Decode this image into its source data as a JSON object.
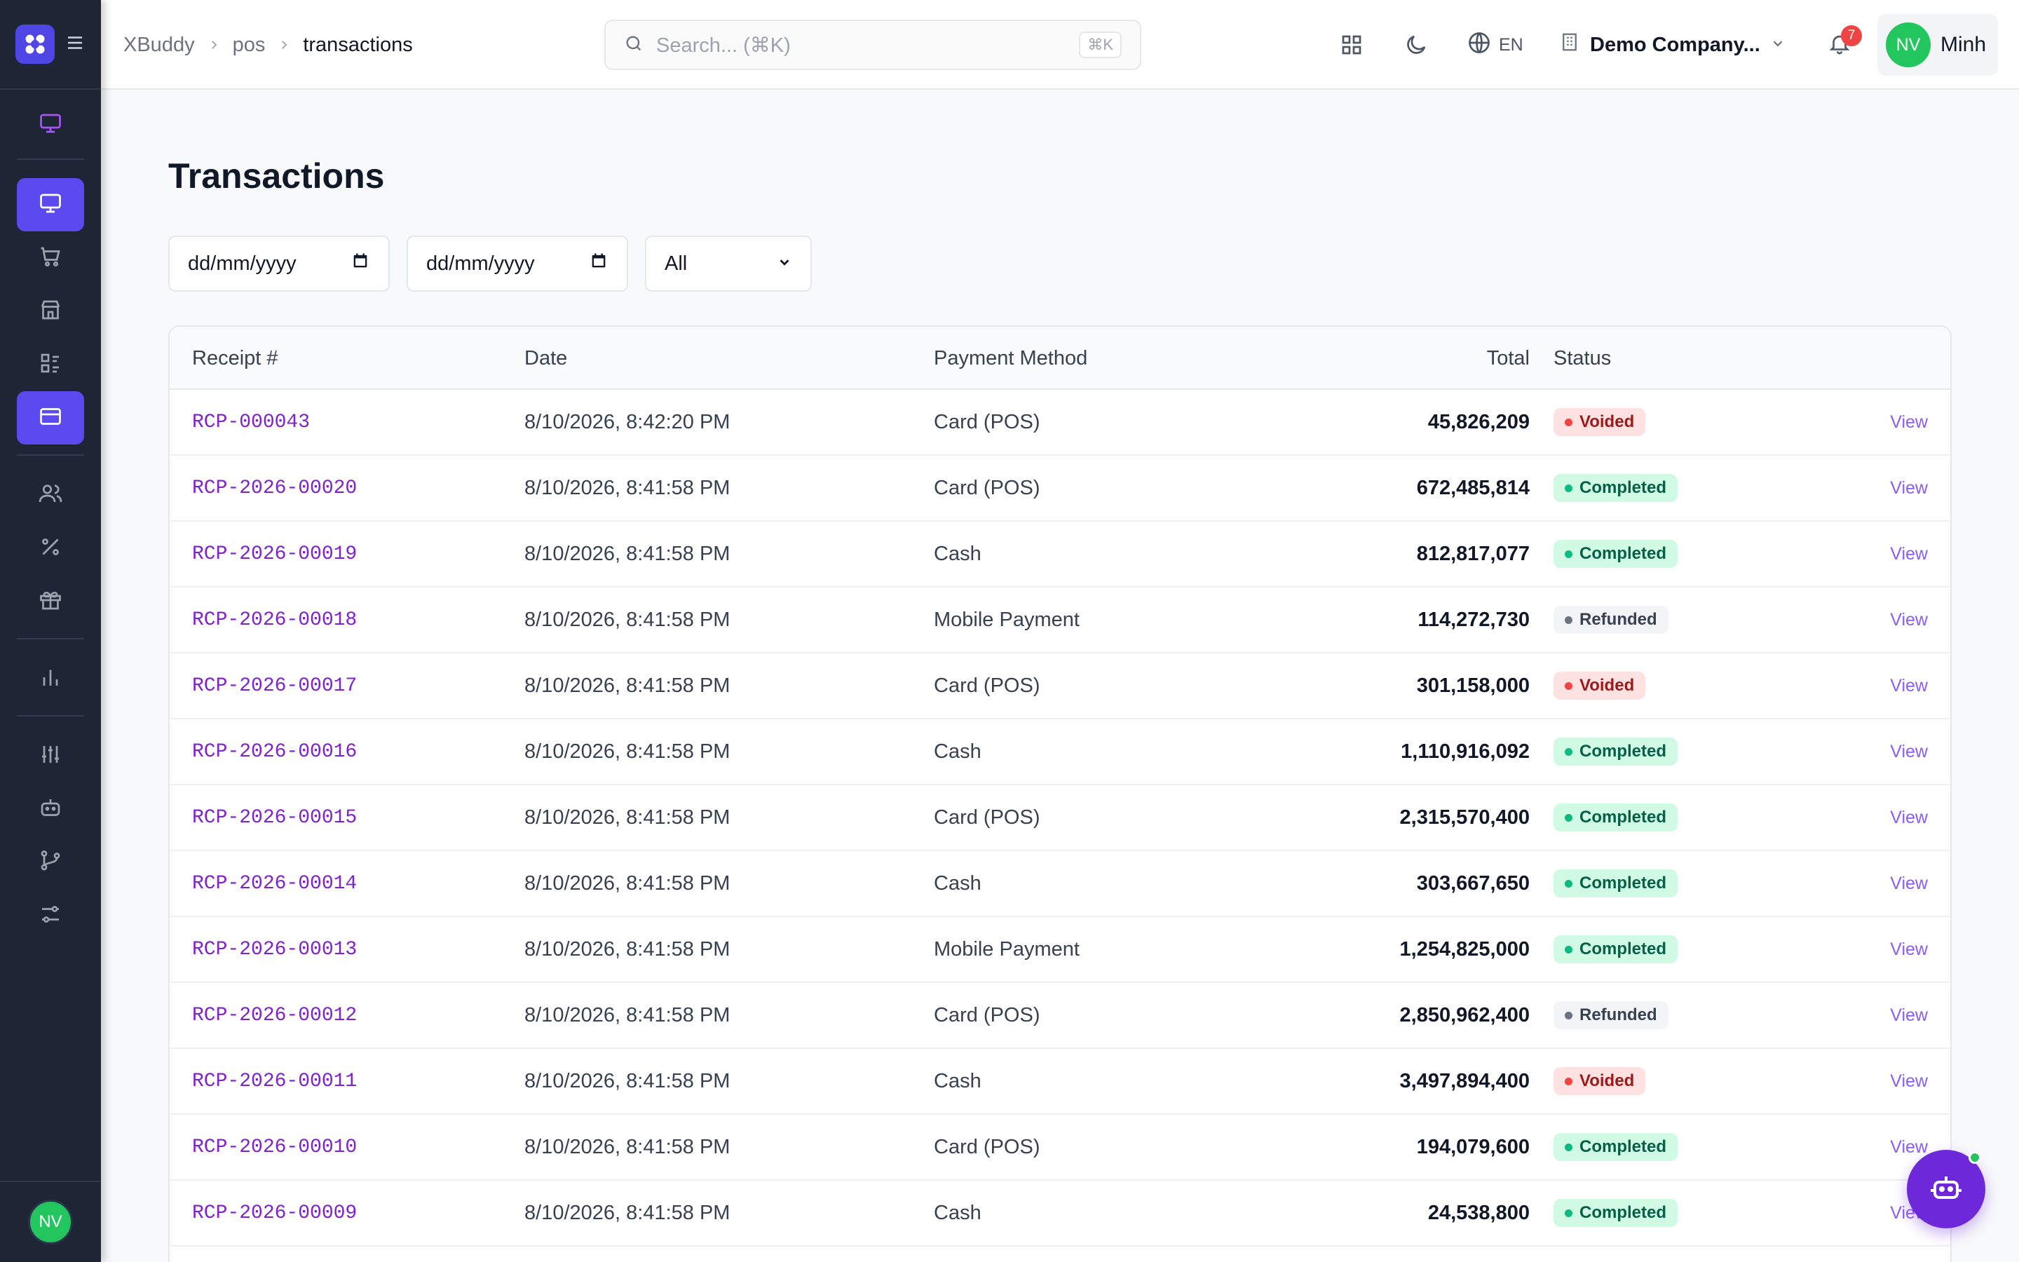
{
  "app": {
    "logo_icon": "x-logo-icon",
    "brand_color": "#5b4bef"
  },
  "breadcrumb": {
    "items": [
      "XBuddy",
      "pos",
      "transactions"
    ]
  },
  "search": {
    "placeholder": "Search... (⌘K)",
    "shortcut": "⌘K"
  },
  "header": {
    "language": "EN",
    "company": "Demo Company...",
    "notifications_count": "7",
    "user_initials": "NV",
    "user_name": "Minh"
  },
  "sidebar": {
    "items": [
      {
        "icon": "monitor-icon",
        "active": false
      },
      {
        "icon": "monitor-icon",
        "active": true
      },
      {
        "icon": "cart-icon",
        "active": false
      },
      {
        "icon": "store-icon",
        "active": false
      },
      {
        "icon": "list-icon",
        "active": false
      },
      {
        "icon": "credit-card-icon",
        "active": true
      },
      {
        "icon": "users-icon",
        "active": false
      },
      {
        "icon": "percent-icon",
        "active": false
      },
      {
        "icon": "gift-icon",
        "active": false
      },
      {
        "icon": "bar-chart-icon",
        "active": false
      },
      {
        "icon": "sliders-icon",
        "active": false
      },
      {
        "icon": "robot-icon",
        "active": false
      },
      {
        "icon": "git-branch-icon",
        "active": false
      },
      {
        "icon": "settings-icon",
        "active": false
      }
    ],
    "user_initials": "NV"
  },
  "page": {
    "title": "Transactions",
    "filters": {
      "date_from_placeholder": "dd/mm/yyyy",
      "date_to_placeholder": "dd/mm/yyyy",
      "status_selected": "All"
    }
  },
  "table": {
    "columns": {
      "receipt": "Receipt #",
      "date": "Date",
      "method": "Payment Method",
      "total": "Total",
      "status": "Status"
    },
    "view_label": "View",
    "rows": [
      {
        "receipt": "RCP-000043",
        "date": "8/10/2026, 8:42:20 PM",
        "method": "Card (POS)",
        "total": "45,826,209",
        "status": "Voided"
      },
      {
        "receipt": "RCP-2026-00020",
        "date": "8/10/2026, 8:41:58 PM",
        "method": "Card (POS)",
        "total": "672,485,814",
        "status": "Completed"
      },
      {
        "receipt": "RCP-2026-00019",
        "date": "8/10/2026, 8:41:58 PM",
        "method": "Cash",
        "total": "812,817,077",
        "status": "Completed"
      },
      {
        "receipt": "RCP-2026-00018",
        "date": "8/10/2026, 8:41:58 PM",
        "method": "Mobile Payment",
        "total": "114,272,730",
        "status": "Refunded"
      },
      {
        "receipt": "RCP-2026-00017",
        "date": "8/10/2026, 8:41:58 PM",
        "method": "Card (POS)",
        "total": "301,158,000",
        "status": "Voided"
      },
      {
        "receipt": "RCP-2026-00016",
        "date": "8/10/2026, 8:41:58 PM",
        "method": "Cash",
        "total": "1,110,916,092",
        "status": "Completed"
      },
      {
        "receipt": "RCP-2026-00015",
        "date": "8/10/2026, 8:41:58 PM",
        "method": "Card (POS)",
        "total": "2,315,570,400",
        "status": "Completed"
      },
      {
        "receipt": "RCP-2026-00014",
        "date": "8/10/2026, 8:41:58 PM",
        "method": "Cash",
        "total": "303,667,650",
        "status": "Completed"
      },
      {
        "receipt": "RCP-2026-00013",
        "date": "8/10/2026, 8:41:58 PM",
        "method": "Mobile Payment",
        "total": "1,254,825,000",
        "status": "Completed"
      },
      {
        "receipt": "RCP-2026-00012",
        "date": "8/10/2026, 8:41:58 PM",
        "method": "Card (POS)",
        "total": "2,850,962,400",
        "status": "Refunded"
      },
      {
        "receipt": "RCP-2026-00011",
        "date": "8/10/2026, 8:41:58 PM",
        "method": "Cash",
        "total": "3,497,894,400",
        "status": "Voided"
      },
      {
        "receipt": "RCP-2026-00010",
        "date": "8/10/2026, 8:41:58 PM",
        "method": "Card (POS)",
        "total": "194,079,600",
        "status": "Completed"
      },
      {
        "receipt": "RCP-2026-00009",
        "date": "8/10/2026, 8:41:58 PM",
        "method": "Cash",
        "total": "24,538,800",
        "status": "Completed"
      }
    ]
  },
  "colors": {
    "voided": "#ef4444",
    "completed": "#10b981",
    "refunded": "#6b7280",
    "link": "#7e22ce",
    "fab": "#6d28d9"
  },
  "fab": {
    "icon": "robot-icon"
  }
}
